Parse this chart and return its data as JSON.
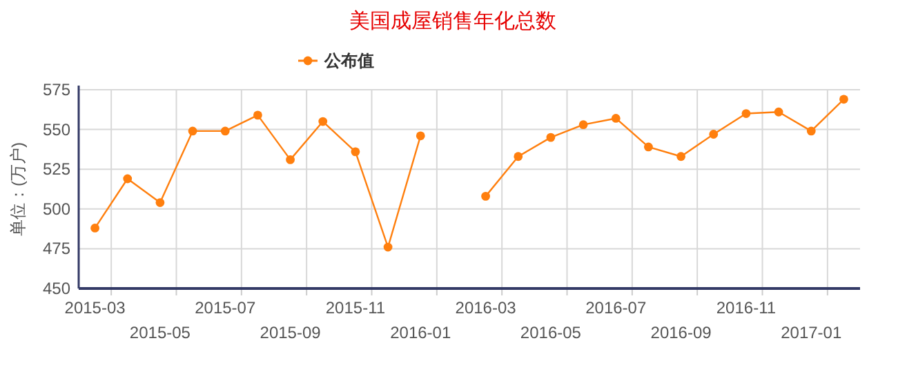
{
  "chart_data": {
    "type": "line",
    "title": "美国成屋销售年化总数",
    "ylabel": "单位：(万户)",
    "categories": [
      "2015-03",
      null,
      "2015-05",
      null,
      "2015-07",
      null,
      "2015-09",
      null,
      "2015-11",
      null,
      "2016-01",
      null,
      "2016-03",
      null,
      "2016-05",
      null,
      "2016-07",
      null,
      "2016-09",
      null,
      "2016-11",
      null,
      "2017-01",
      null
    ],
    "series": [
      {
        "name": "公布值",
        "color": "#ff7f0e",
        "values": [
          488,
          519,
          504,
          549,
          549,
          559,
          531,
          555,
          536,
          476,
          546,
          null,
          508,
          533,
          545,
          553,
          557,
          539,
          533,
          547,
          560,
          561,
          549,
          569
        ]
      }
    ],
    "ylim": [
      450,
      575
    ],
    "yticks": [
      450,
      475,
      500,
      525,
      550,
      575
    ],
    "grid": true,
    "legend": "top",
    "marker": "circle",
    "line_style": "solid"
  }
}
